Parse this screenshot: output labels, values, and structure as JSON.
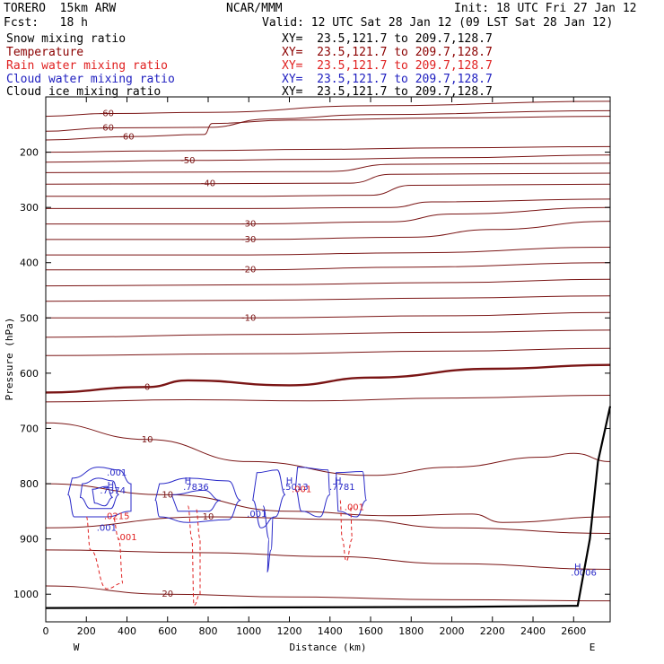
{
  "header": {
    "model": "TORERO  15km ARW",
    "org": "NCAR/MMM",
    "init": "Init: 18 UTC Fri 27 Jan 12",
    "fcst": "Fcst:   18 h",
    "valid": "Valid: 12 UTC Sat 28 Jan 12 (09 LST Sat 28 Jan 12)"
  },
  "fields": [
    {
      "name": "Snow mixing ratio",
      "color": "#000000",
      "xs": "XY=  23.5,121.7 to 209.7,128.7",
      "xs_color": "#000000"
    },
    {
      "name": "Temperature",
      "color": "#8b0000",
      "xs": "XY=  23.5,121.7 to 209.7,128.7",
      "xs_color": "#8b0000"
    },
    {
      "name": "Rain water mixing ratio",
      "color": "#e02020",
      "xs": "XY=  23.5,121.7 to 209.7,128.7",
      "xs_color": "#e02020"
    },
    {
      "name": "Cloud water mixing ratio",
      "color": "#2020c0",
      "xs": "XY=  23.5,121.7 to 209.7,128.7",
      "xs_color": "#2020c0"
    },
    {
      "name": "Cloud ice mixing ratio",
      "color": "#000000",
      "xs": "XY=  23.5,121.7 to 209.7,128.7",
      "xs_color": "#000000"
    }
  ],
  "chart_data": {
    "type": "line",
    "xlabel": "Distance (km)",
    "ylabel": "Pressure (hPa)",
    "xlim": [
      0,
      2780
    ],
    "ylim": [
      1050,
      100
    ],
    "x_ticks": [
      0,
      200,
      400,
      600,
      800,
      1000,
      1200,
      1400,
      1600,
      1800,
      2000,
      2200,
      2400,
      2600
    ],
    "y_ticks": [
      200,
      300,
      400,
      500,
      600,
      700,
      800,
      900,
      1000
    ],
    "end_labels": [
      "W",
      "E"
    ],
    "colors": {
      "temperature": "#7a1515",
      "rain": "#e02020",
      "cloud_water": "#2a2ac8",
      "terrain": "#000000"
    },
    "temperature_isotherms": [
      {
        "label": "-60",
        "points": [
          [
            0,
            135
          ],
          [
            300,
            130
          ],
          [
            800,
            128
          ],
          [
            1600,
            116
          ],
          [
            2780,
            108
          ]
        ]
      },
      {
        "label": "-60",
        "points": [
          [
            0,
            162
          ],
          [
            300,
            156
          ],
          [
            800,
            155
          ],
          [
            1100,
            140
          ],
          [
            1600,
            132
          ],
          [
            2780,
            125
          ]
        ]
      },
      {
        "label": "-60",
        "points": [
          [
            0,
            178
          ],
          [
            400,
            172
          ],
          [
            780,
            168
          ],
          [
            820,
            148
          ],
          [
            1200,
            142
          ],
          [
            2000,
            138
          ],
          [
            2780,
            135
          ]
        ]
      },
      {
        "label": "",
        "points": [
          [
            0,
            200
          ],
          [
            500,
            198
          ],
          [
            800,
            197
          ],
          [
            1300,
            195
          ],
          [
            2000,
            192
          ],
          [
            2780,
            190
          ]
        ]
      },
      {
        "label": "-50",
        "points": [
          [
            0,
            218
          ],
          [
            700,
            215
          ],
          [
            1300,
            213
          ],
          [
            2000,
            210
          ],
          [
            2780,
            205
          ]
        ]
      },
      {
        "label": "",
        "points": [
          [
            0,
            237
          ],
          [
            800,
            236
          ],
          [
            1400,
            235
          ],
          [
            1700,
            222
          ],
          [
            2780,
            220
          ]
        ]
      },
      {
        "label": "-40",
        "points": [
          [
            0,
            258
          ],
          [
            800,
            257
          ],
          [
            1500,
            256
          ],
          [
            1700,
            240
          ],
          [
            2780,
            238
          ]
        ]
      },
      {
        "label": "",
        "points": [
          [
            0,
            280
          ],
          [
            900,
            280
          ],
          [
            1600,
            278
          ],
          [
            1800,
            260
          ],
          [
            2780,
            258
          ]
        ]
      },
      {
        "label": "",
        "points": [
          [
            0,
            302
          ],
          [
            1000,
            302
          ],
          [
            1700,
            300
          ],
          [
            1900,
            290
          ],
          [
            2780,
            285
          ]
        ]
      },
      {
        "label": "-30",
        "points": [
          [
            0,
            330
          ],
          [
            1000,
            330
          ],
          [
            1700,
            326
          ],
          [
            2000,
            312
          ],
          [
            2780,
            300
          ]
        ]
      },
      {
        "label": "-30",
        "points": [
          [
            0,
            358
          ],
          [
            1000,
            358
          ],
          [
            1800,
            354
          ],
          [
            2200,
            340
          ],
          [
            2780,
            325
          ]
        ]
      },
      {
        "label": "",
        "points": [
          [
            0,
            386
          ],
          [
            1000,
            386
          ],
          [
            1800,
            382
          ],
          [
            2780,
            372
          ]
        ]
      },
      {
        "label": "-20",
        "points": [
          [
            0,
            413
          ],
          [
            1000,
            413
          ],
          [
            1800,
            408
          ],
          [
            2780,
            400
          ]
        ]
      },
      {
        "label": "",
        "points": [
          [
            0,
            442
          ],
          [
            1000,
            440
          ],
          [
            2000,
            436
          ],
          [
            2780,
            430
          ]
        ]
      },
      {
        "label": "",
        "points": [
          [
            0,
            470
          ],
          [
            1000,
            468
          ],
          [
            2000,
            464
          ],
          [
            2780,
            460
          ]
        ]
      },
      {
        "label": "-10",
        "points": [
          [
            0,
            500
          ],
          [
            1000,
            500
          ],
          [
            2000,
            496
          ],
          [
            2780,
            490
          ]
        ]
      },
      {
        "label": "",
        "points": [
          [
            0,
            535
          ],
          [
            1000,
            530
          ],
          [
            2000,
            526
          ],
          [
            2780,
            522
          ]
        ]
      },
      {
        "label": "",
        "points": [
          [
            0,
            568
          ],
          [
            1000,
            565
          ],
          [
            2000,
            560
          ],
          [
            2780,
            555
          ]
        ]
      },
      {
        "label": "0",
        "points": [
          [
            0,
            635
          ],
          [
            500,
            625
          ],
          [
            700,
            613
          ],
          [
            1200,
            622
          ],
          [
            1600,
            608
          ],
          [
            2200,
            592
          ],
          [
            2780,
            585
          ]
        ]
      },
      {
        "label": "",
        "points": [
          [
            0,
            652
          ],
          [
            700,
            648
          ],
          [
            1300,
            650
          ],
          [
            2000,
            645
          ],
          [
            2780,
            640
          ]
        ]
      },
      {
        "label": "10",
        "points": [
          [
            0,
            690
          ],
          [
            500,
            720
          ],
          [
            1000,
            760
          ],
          [
            1600,
            785
          ],
          [
            2000,
            770
          ],
          [
            2450,
            752
          ],
          [
            2600,
            745
          ],
          [
            2780,
            760
          ]
        ]
      },
      {
        "label": "10",
        "points": [
          [
            0,
            800
          ],
          [
            600,
            820
          ],
          [
            1200,
            850
          ],
          [
            1700,
            858
          ],
          [
            2100,
            855
          ],
          [
            2250,
            870
          ],
          [
            2780,
            860
          ]
        ]
      },
      {
        "label": "10",
        "points": [
          [
            0,
            880
          ],
          [
            800,
            860
          ],
          [
            1500,
            865
          ],
          [
            2000,
            880
          ],
          [
            2780,
            890
          ]
        ]
      },
      {
        "label": "",
        "points": [
          [
            0,
            920
          ],
          [
            800,
            925
          ],
          [
            1400,
            932
          ],
          [
            2000,
            945
          ],
          [
            2780,
            955
          ]
        ]
      },
      {
        "label": "20",
        "points": [
          [
            0,
            985
          ],
          [
            600,
            1000
          ],
          [
            1200,
            1005
          ],
          [
            2000,
            1010
          ],
          [
            2780,
            1012
          ]
        ]
      }
    ],
    "cloud_water_labels": [
      {
        "text": ".001",
        "x": 350,
        "y": 785
      },
      {
        "text": ".001",
        "x": 300,
        "y": 885
      },
      {
        "text": ".001",
        "x": 1040,
        "y": 860
      },
      {
        "text": "H",
        "x": 320,
        "y": 808
      },
      {
        "text": ".7374",
        "x": 330,
        "y": 818
      },
      {
        "text": "H",
        "x": 700,
        "y": 800
      },
      {
        "text": ".7836",
        "x": 740,
        "y": 811
      },
      {
        "text": "H",
        "x": 1200,
        "y": 800
      },
      {
        "text": ".5013",
        "x": 1230,
        "y": 811
      },
      {
        "text": "H",
        "x": 1440,
        "y": 800
      },
      {
        "text": ".7781",
        "x": 1460,
        "y": 811
      },
      {
        "text": "H",
        "x": 2620,
        "y": 956
      },
      {
        "text": ".0006",
        "x": 2650,
        "y": 966
      }
    ],
    "rain_labels": [
      {
        "text": ".0215",
        "x": 350,
        "y": 864
      },
      {
        "text": ".001",
        "x": 400,
        "y": 902
      },
      {
        "text": ".001",
        "x": 1520,
        "y": 848
      },
      {
        "text": ".001",
        "x": 1260,
        "y": 815
      }
    ],
    "terrain": [
      [
        0,
        1025
      ],
      [
        1000,
        1024
      ],
      [
        2000,
        1023
      ],
      [
        2620,
        1021
      ],
      [
        2680,
        900
      ],
      [
        2720,
        760
      ],
      [
        2780,
        660
      ]
    ]
  }
}
